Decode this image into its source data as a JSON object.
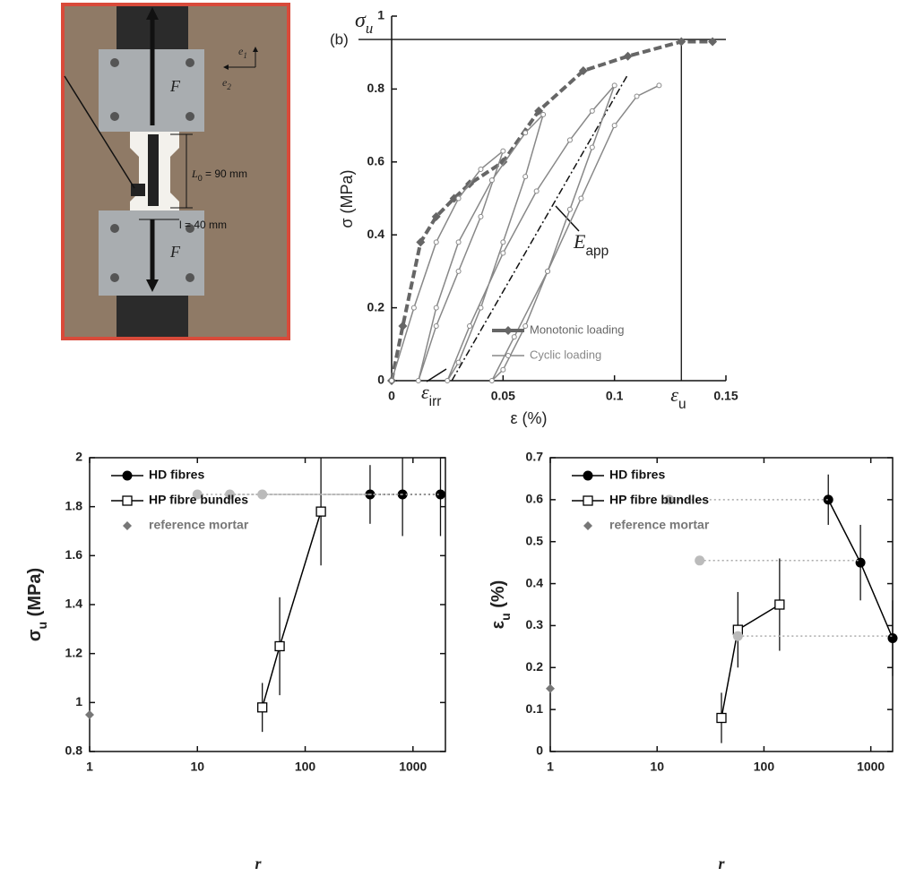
{
  "photo": {
    "force_top": "F",
    "force_bottom": "F",
    "axis1": [
      "e",
      "1"
    ],
    "axis2": [
      "e",
      "2"
    ],
    "gauge_length": [
      "L",
      "0",
      " = 90 mm"
    ],
    "width": "l = 40 mm"
  },
  "chart_data": [
    {
      "type": "line",
      "panel": "(b)",
      "xlabel": "ε (%)",
      "ylabel": "σ (MPa)",
      "xlim": [
        0,
        0.15
      ],
      "ylim": [
        0,
        1
      ],
      "xticks": [
        0,
        0.05,
        0.1,
        0.15
      ],
      "yticks": [
        0,
        0.2,
        0.4,
        0.6,
        0.8,
        1
      ],
      "reference_lines": [
        {
          "axis": "y",
          "label": [
            "σ",
            "u"
          ],
          "value": 0.936
        },
        {
          "axis": "x",
          "label": [
            "ε",
            "u"
          ],
          "value": 0.13
        }
      ],
      "annotations": [
        [
          "E",
          "app"
        ],
        [
          "ε",
          "irr"
        ]
      ],
      "legend": "lower right",
      "series": [
        {
          "name": "Monotonic loading",
          "color": "#666666",
          "marker": "diamond",
          "line": "dashed",
          "x": [
            0,
            0.005,
            0.013,
            0.02,
            0.028,
            0.035,
            0.05,
            0.066,
            0.086,
            0.106,
            0.13,
            0.144
          ],
          "values": [
            0,
            0.15,
            0.38,
            0.45,
            0.5,
            0.54,
            0.6,
            0.74,
            0.85,
            0.89,
            0.93,
            0.93
          ]
        },
        {
          "name": "Cyclic loading",
          "color": "#888888",
          "marker": "circle-open",
          "line": "solid",
          "x": [
            0,
            0.01,
            0.02,
            0.03,
            0.04,
            0.05,
            0.04,
            0.03,
            0.02,
            0.012,
            0.02,
            0.03,
            0.045,
            0.06,
            0.068,
            0.06,
            0.05,
            0.04,
            0.03,
            0.025,
            0.035,
            0.05,
            0.065,
            0.08,
            0.09,
            0.1,
            0.09,
            0.08,
            0.07,
            0.06,
            0.05,
            0.045,
            0.055,
            0.07,
            0.085,
            0.1,
            0.11,
            0.12
          ],
          "values": [
            0,
            0.2,
            0.38,
            0.5,
            0.58,
            0.63,
            0.45,
            0.3,
            0.15,
            0,
            0.2,
            0.38,
            0.55,
            0.68,
            0.73,
            0.56,
            0.38,
            0.2,
            0.05,
            0,
            0.15,
            0.35,
            0.52,
            0.66,
            0.74,
            0.81,
            0.64,
            0.47,
            0.3,
            0.15,
            0.03,
            0,
            0.12,
            0.3,
            0.5,
            0.7,
            0.78,
            0.81
          ]
        }
      ]
    },
    {
      "type": "scatter",
      "xscale": "log",
      "xlabel": "r",
      "ylabel": [
        "σ",
        "u",
        " (MPa)"
      ],
      "xlim": [
        1,
        2000
      ],
      "ylim": [
        0.8,
        2
      ],
      "xticks": [
        1,
        10,
        100,
        1000
      ],
      "yticks": [
        0.8,
        1,
        1.2,
        1.4,
        1.6,
        1.8,
        2
      ],
      "legend": "upper left",
      "series": [
        {
          "name": "HD fibres",
          "color": "#000000",
          "marker": "circle",
          "line": "dotted",
          "x": [
            400,
            800,
            1800
          ],
          "values": [
            1.85,
            1.85,
            1.85
          ],
          "errors": [
            0.12,
            0.17,
            0.17
          ]
        },
        {
          "name": "HP fibre bundles",
          "color": "#000000",
          "marker": "square-open",
          "line": "solid",
          "x": [
            40,
            58,
            140
          ],
          "values": [
            0.98,
            1.23,
            1.78
          ],
          "errors": [
            0.1,
            0.2,
            0.22
          ]
        },
        {
          "name": "reference mortar",
          "color": "#777777",
          "marker": "diamond",
          "line": "none",
          "x": [
            1
          ],
          "values": [
            0.95
          ]
        },
        {
          "color": "#bbbbbb",
          "marker": "circle",
          "line": "none",
          "x": [
            10,
            20,
            40
          ],
          "values": [
            1.85,
            1.85,
            1.85
          ]
        }
      ]
    },
    {
      "type": "scatter",
      "xscale": "log",
      "xlabel": "r",
      "ylabel": [
        "ε",
        "u",
        " (%)"
      ],
      "xlim": [
        1,
        1600
      ],
      "ylim": [
        0,
        0.7
      ],
      "xticks": [
        1,
        10,
        100,
        1000
      ],
      "yticks": [
        0,
        0.1,
        0.2,
        0.3,
        0.4,
        0.5,
        0.6,
        0.7
      ],
      "legend": "upper left",
      "series": [
        {
          "name": "HD fibres",
          "color": "#000000",
          "marker": "circle",
          "line": "solid",
          "x": [
            400,
            800,
            1600
          ],
          "values": [
            0.6,
            0.45,
            0.27
          ],
          "errors": [
            0.06,
            0.09,
            0.09
          ]
        },
        {
          "name": "HP fibre bundles",
          "color": "#000000",
          "marker": "square-open",
          "line": "solid",
          "x": [
            40,
            57,
            140
          ],
          "values": [
            0.08,
            0.29,
            0.35
          ],
          "errors": [
            0.06,
            0.09,
            0.11
          ]
        },
        {
          "name": "reference mortar",
          "color": "#777777",
          "marker": "diamond",
          "line": "none",
          "x": [
            1
          ],
          "values": [
            0.15
          ]
        },
        {
          "color": "#bbbbbb",
          "marker": "circle",
          "line": "none",
          "x": [
            13,
            25,
            57
          ],
          "values": [
            0.6,
            0.455,
            0.275
          ]
        }
      ]
    }
  ]
}
